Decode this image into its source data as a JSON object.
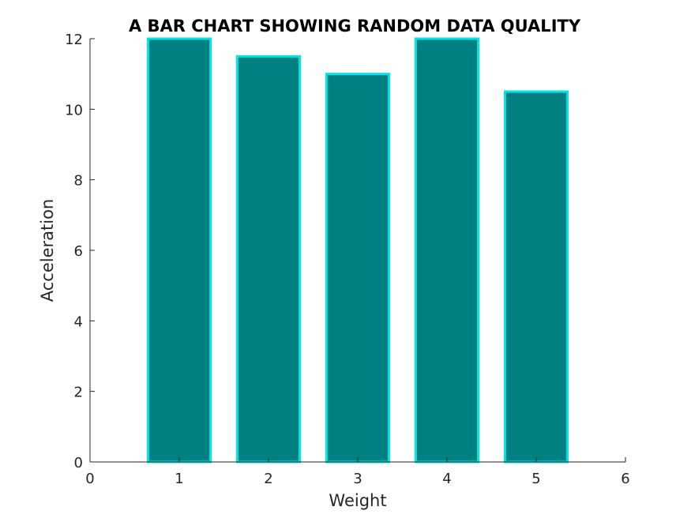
{
  "chart_data": {
    "type": "bar",
    "title": "A BAR CHART SHOWING RANDOM DATA QUALITY",
    "xlabel": "Weight",
    "ylabel": "Acceleration",
    "x": [
      1,
      2,
      3,
      4,
      5
    ],
    "values": [
      12,
      11.5,
      11,
      12,
      10.5
    ],
    "xlim": [
      0,
      6
    ],
    "ylim": [
      0,
      12
    ],
    "xticks": [
      "0",
      "1",
      "2",
      "3",
      "4",
      "5",
      "6"
    ],
    "yticks": [
      "0",
      "2",
      "4",
      "6",
      "8",
      "10",
      "12"
    ],
    "bar_fill_color": "#008080",
    "bar_edge_color": "#00E5E5",
    "axis_color": "#262626",
    "grid": false
  }
}
